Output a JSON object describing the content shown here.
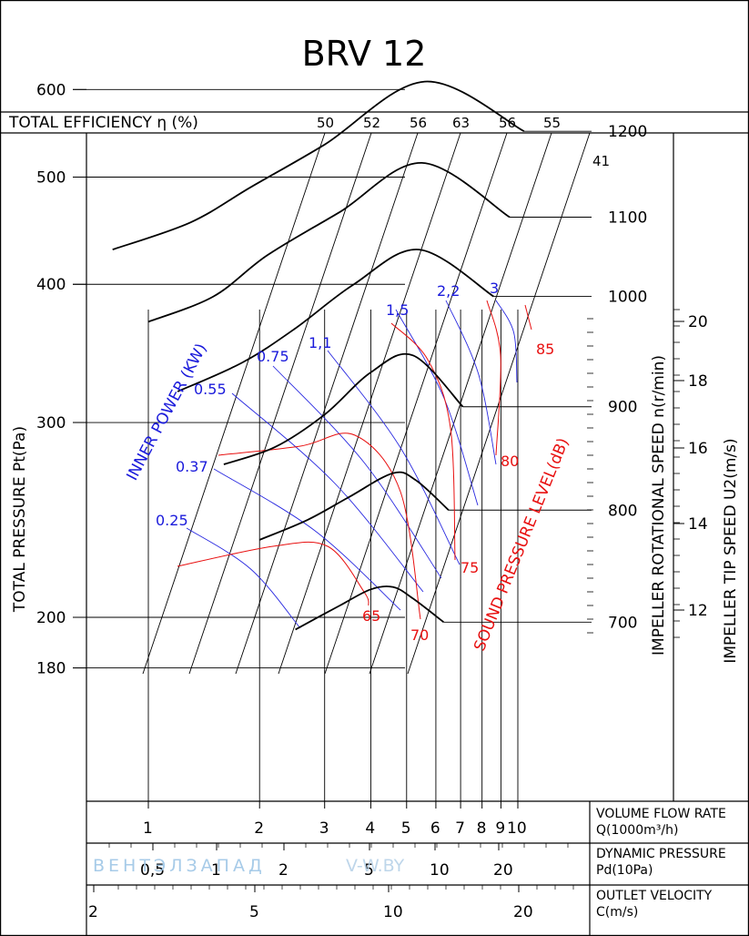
{
  "chart_data": {
    "type": "line",
    "title": "BRV 12",
    "efficiency_label": "TOTAL EFFICIENCY η (%)",
    "efficiency_values": [
      "50",
      "52",
      "56",
      "63",
      "56",
      "55",
      "41"
    ],
    "ylabel": "TOTAL PRESSURE Pt(Pa)",
    "y_ticks": [
      "600",
      "500",
      "400",
      "300",
      "200",
      "180"
    ],
    "y_tick_values": [
      600,
      500,
      400,
      300,
      200,
      180
    ],
    "speed_label": "IMPELLER ROTATIONAL SPEED n(r/min)",
    "speed_ticks": [
      "1200",
      "1100",
      "1000",
      "900",
      "800",
      "700"
    ],
    "tip_label": "IMPELLER TIP SPEED U2(m/s)",
    "tip_ticks": [
      "20",
      "18",
      "16",
      "14",
      "12"
    ],
    "power_label": "INNER POWER (KW)",
    "power_values": [
      "0.25",
      "0.37",
      "0.55",
      "0.75",
      "1,1",
      "1,5",
      "2,2",
      "3"
    ],
    "sound_label": "SOUND PRESSURE LEVEL(dB)",
    "sound_values": [
      "65",
      "70",
      "75",
      "80",
      "85"
    ],
    "flow_label": "VOLUME FLOW RATE",
    "flow_unit": "Q(1000m³/h)",
    "flow_ticks": [
      "1",
      "2",
      "3",
      "4",
      "5",
      "6",
      "7",
      "8",
      "9",
      "10"
    ],
    "flow_tick_values": [
      1,
      2,
      3,
      4,
      5,
      6,
      7,
      8,
      9,
      10
    ],
    "dyn_label": "DYNAMIC PRESSURE",
    "dyn_unit": "Pd(10Pa)",
    "dyn_ticks": [
      "0,5",
      "1",
      "2",
      "5",
      "10",
      "20"
    ],
    "velocity_label": "OUTLET VELOCITY",
    "velocity_unit": "C(m/s)",
    "velocity_ticks": [
      "2",
      "5",
      "10",
      "20"
    ],
    "watermark": "ВЕНТЭЛЗАПАД",
    "watermark_url": "V-W.BY",
    "series": [
      {
        "name": "700",
        "x": [
          2.5,
          3.3,
          4.0,
          4.6,
          5.2,
          6.3
        ],
        "y": [
          195,
          205,
          212,
          213,
          208,
          198
        ]
      },
      {
        "name": "800",
        "x": [
          2.0,
          2.7,
          3.5,
          4.6,
          5.3,
          6.5
        ],
        "y": [
          235,
          245,
          257,
          270,
          266,
          250
        ]
      },
      {
        "name": "900",
        "x": [
          1.6,
          2.2,
          3.0,
          4.0,
          5.2,
          7.1
        ],
        "y": [
          275,
          285,
          305,
          333,
          345,
          310
        ]
      },
      {
        "name": "1000",
        "x": [
          1.2,
          1.8,
          2.5,
          3.6,
          5.4,
          8.6
        ],
        "y": [
          320,
          340,
          365,
          400,
          430,
          390
        ]
      },
      {
        "name": "1100",
        "x": [
          1.0,
          1.5,
          2.1,
          3.3,
          5.5,
          9.5
        ],
        "y": [
          370,
          390,
          425,
          465,
          515,
          460
        ]
      },
      {
        "name": "1200",
        "x": [
          0.8,
          1.3,
          1.9,
          3.0,
          5.6,
          10.4
        ],
        "y": [
          430,
          455,
          490,
          535,
          610,
          550
        ]
      }
    ]
  }
}
